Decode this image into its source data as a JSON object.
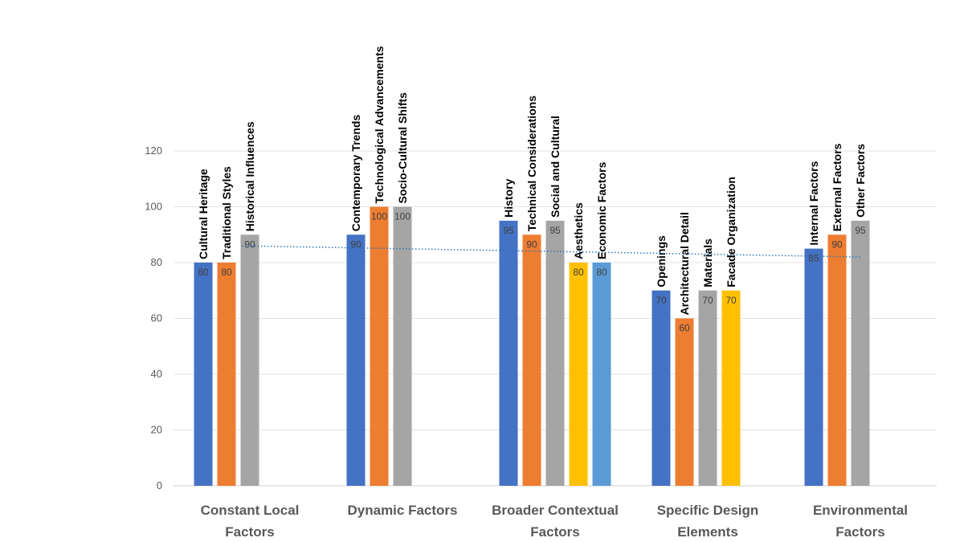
{
  "chart_data": {
    "type": "bar",
    "title": "",
    "xlabel": "",
    "ylabel": "",
    "ylim": [
      0,
      120
    ],
    "yticks": [
      0,
      20,
      40,
      60,
      80,
      100,
      120
    ],
    "grid": true,
    "legend": "none",
    "series_colors": [
      "#4472C4",
      "#ED7D31",
      "#A5A5A5",
      "#FFC000",
      "#5B9BD5"
    ],
    "groups": [
      {
        "category": [
          "Constant Local",
          "Factors"
        ],
        "bars": [
          {
            "label": "Cultural Heritage",
            "value": 80
          },
          {
            "label": "Traditional  Styles",
            "value": 80
          },
          {
            "label": "Historical  Influences",
            "value": 90
          }
        ]
      },
      {
        "category": [
          "Dynamic Factors"
        ],
        "bars": [
          {
            "label": "Contemporary  Trends",
            "value": 90
          },
          {
            "label": "Technological Advancements",
            "value": 100
          },
          {
            "label": "Socio-Cultural  Shifts",
            "value": 100
          }
        ]
      },
      {
        "category": [
          "Broader Contextual",
          "Factors"
        ],
        "bars": [
          {
            "label": "History",
            "value": 95
          },
          {
            "label": "Technical Considerations",
            "value": 90
          },
          {
            "label": "Social  and  Cultural",
            "value": 95
          },
          {
            "label": "Aesthetics",
            "value": 80
          },
          {
            "label": "Economic  Factors",
            "value": 80
          }
        ]
      },
      {
        "category": [
          "Specific Design",
          "Elements"
        ],
        "bars": [
          {
            "label": "Openings",
            "value": 70
          },
          {
            "label": "Architectural  Detail",
            "value": 60
          },
          {
            "label": "Materials",
            "value": 70
          },
          {
            "label": "Facade  Organization",
            "value": 70
          }
        ]
      },
      {
        "category": [
          "Environmental",
          "Factors"
        ],
        "bars": [
          {
            "label": "Internal  Factors",
            "value": 85
          },
          {
            "label": "External  Factors",
            "value": 90
          },
          {
            "label": "Other  Factors",
            "value": 95
          }
        ]
      }
    ],
    "trendline": {
      "style": "dotted",
      "color": "#2E75B6",
      "start_value": 86,
      "end_value": 82
    }
  }
}
